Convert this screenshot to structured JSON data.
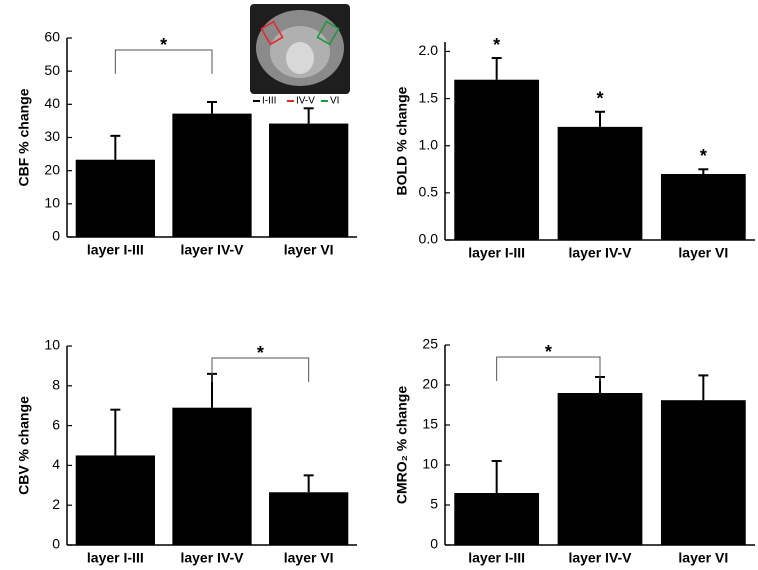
{
  "chart_data": [
    {
      "type": "bar",
      "y_label": "CBF % change",
      "categories": [
        "layer I-III",
        "layer IV-V",
        "layer VI"
      ],
      "values": [
        23.3,
        37.2,
        34.2
      ],
      "errors": [
        7.2,
        3.5,
        4.6
      ],
      "color": "#000000",
      "ylim": [
        0,
        60
      ],
      "yticks": [
        0,
        10,
        20,
        30,
        40,
        50,
        60
      ],
      "annotations": [
        {
          "text": "*",
          "between": [
            "layer I-III",
            "layer IV-V"
          ]
        }
      ],
      "inset_legend": [
        {
          "label": "I-III",
          "color": "#000000"
        },
        {
          "label": "IV-V",
          "color": "#e8262a"
        },
        {
          "label": "VI",
          "color": "#1a9a3a"
        }
      ]
    },
    {
      "type": "bar",
      "y_label": "BOLD % change",
      "categories": [
        "layer I-III",
        "layer IV-V",
        "layer VI"
      ],
      "values": [
        1.7,
        1.2,
        0.7
      ],
      "errors": [
        0.23,
        0.16,
        0.05
      ],
      "color": "#000000",
      "ylim": [
        0,
        2.1
      ],
      "yticks": [
        {
          "value": 0,
          "label": "0.0"
        },
        {
          "value": 0.5,
          "label": "0.5"
        },
        {
          "value": 1,
          "label": "1.0"
        },
        {
          "value": 1.5,
          "label": "1.5"
        },
        {
          "value": 2,
          "label": "2.0"
        }
      ],
      "annotations": [
        {
          "text": "*",
          "category": "layer I-III"
        },
        {
          "text": "*",
          "category": "layer IV-V"
        },
        {
          "text": "*",
          "category": "layer VI"
        }
      ]
    },
    {
      "type": "bar",
      "y_label": "CBV % change",
      "categories": [
        "layer I-III",
        "layer IV-V",
        "layer VI"
      ],
      "values": [
        4.5,
        6.9,
        2.65
      ],
      "errors": [
        2.3,
        1.7,
        0.85
      ],
      "color": "#000000",
      "ylim": [
        0,
        10
      ],
      "yticks": [
        0,
        2,
        4,
        6,
        8,
        10
      ],
      "annotations": [
        {
          "text": "*",
          "between": [
            "layer IV-V",
            "layer VI"
          ]
        }
      ]
    },
    {
      "type": "bar",
      "y_label": "CMRO₂ % change",
      "categories": [
        "layer I-III",
        "layer IV-V",
        "layer VI"
      ],
      "values": [
        6.5,
        19.0,
        18.1
      ],
      "errors": [
        4.0,
        2.0,
        3.1
      ],
      "color": "#000000",
      "ylim": [
        0,
        25
      ],
      "yticks": [
        0,
        5,
        10,
        15,
        20,
        25
      ],
      "annotations": [
        {
          "text": "*",
          "between": [
            "layer I-III",
            "layer IV-V"
          ]
        }
      ]
    }
  ]
}
